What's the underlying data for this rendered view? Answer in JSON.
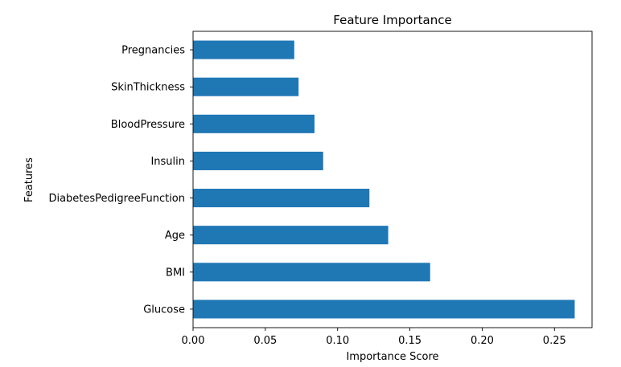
{
  "chart_data": {
    "type": "bar",
    "orientation": "horizontal",
    "title": "Feature Importance",
    "xlabel": "Importance Score",
    "ylabel": "Features",
    "categories": [
      "Pregnancies",
      "SkinThickness",
      "BloodPressure",
      "Insulin",
      "DiabetesPedigreeFunction",
      "Age",
      "BMI",
      "Glucose"
    ],
    "values": [
      0.07,
      0.073,
      0.084,
      0.09,
      0.122,
      0.135,
      0.164,
      0.264
    ],
    "xlim": [
      0,
      0.276
    ],
    "xticks": [
      0.0,
      0.05,
      0.1,
      0.15,
      0.2,
      0.25
    ],
    "xtick_labels": [
      "0.00",
      "0.05",
      "0.10",
      "0.15",
      "0.20",
      "0.25"
    ],
    "bar_color": "#1f77b4",
    "grid": false,
    "legend": "none"
  }
}
